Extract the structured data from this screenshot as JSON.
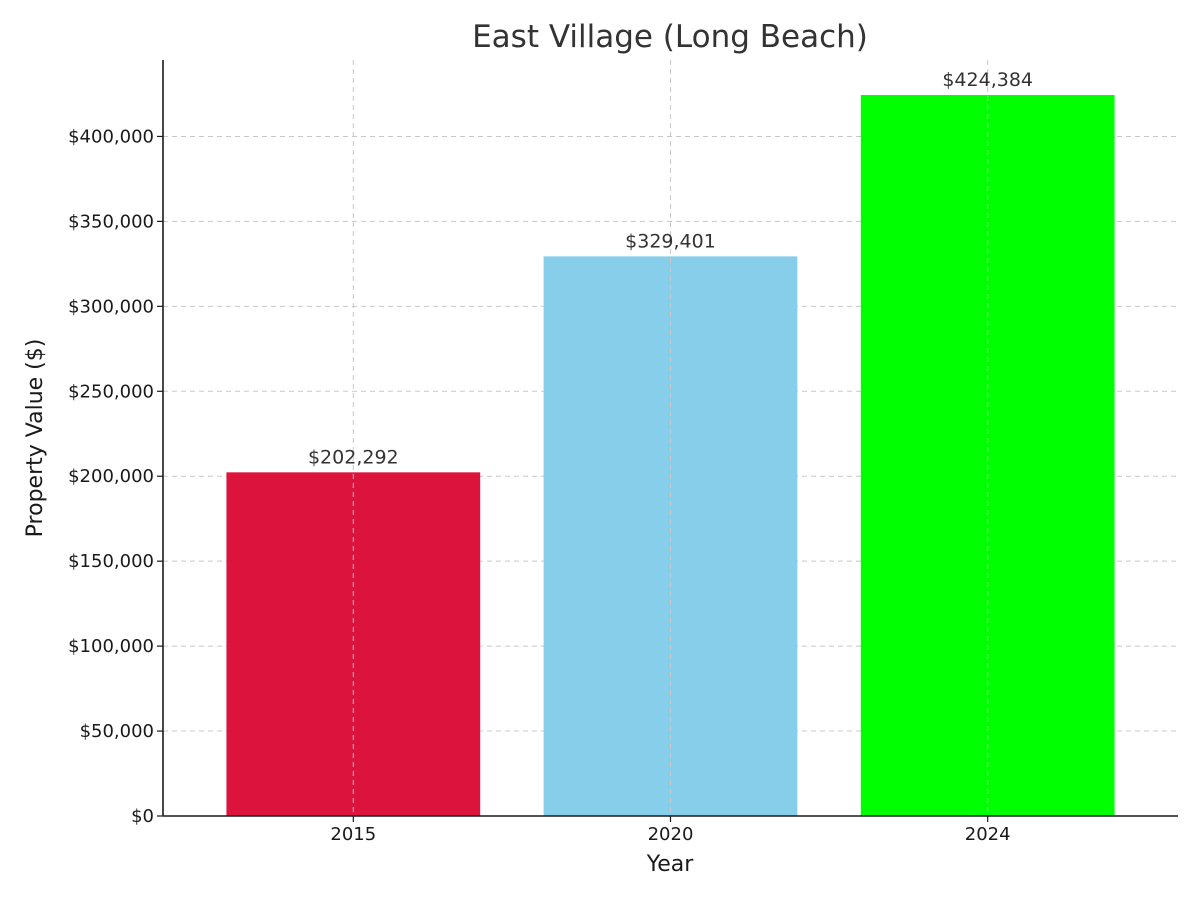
{
  "chart_data": {
    "type": "bar",
    "title": "East Village (Long Beach)",
    "xlabel": "Year",
    "ylabel": "Property Value ($)",
    "categories": [
      "2015",
      "2020",
      "2024"
    ],
    "values": [
      202292,
      329401,
      424384
    ],
    "value_labels": [
      "$202,292",
      "$329,401",
      "$424,384"
    ],
    "colors": [
      "#DC143C",
      "#87CEEB",
      "#00FF00"
    ],
    "ylim": [
      0,
      445000
    ],
    "yticks": [
      0,
      50000,
      100000,
      150000,
      200000,
      250000,
      300000,
      350000,
      400000
    ],
    "ytick_labels": [
      "$0",
      "$50,000",
      "$100,000",
      "$150,000",
      "$200,000",
      "$250,000",
      "$300,000",
      "$350,000",
      "$400,000"
    ],
    "grid": true,
    "legend": false
  }
}
